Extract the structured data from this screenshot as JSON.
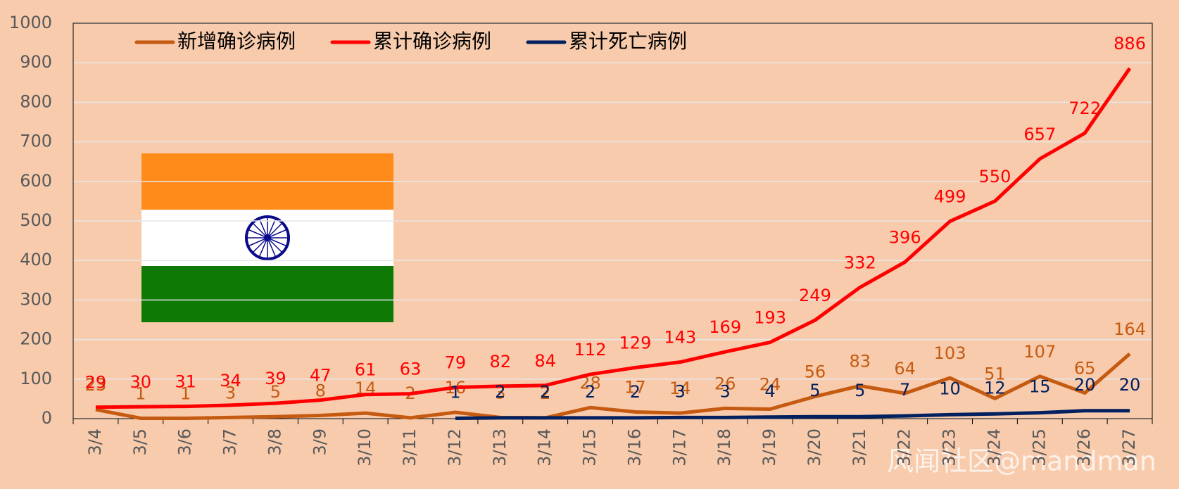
{
  "chart_data": {
    "type": "line",
    "categories": [
      "3/4",
      "3/5",
      "3/6",
      "3/7",
      "3/8",
      "3/9",
      "3/10",
      "3/11",
      "3/12",
      "3/13",
      "3/14",
      "3/15",
      "3/16",
      "3/17",
      "3/18",
      "3/19",
      "3/20",
      "3/21",
      "3/22",
      "3/23",
      "3/24",
      "3/25",
      "3/26",
      "3/27"
    ],
    "series": [
      {
        "name": "新增确诊病例",
        "color": "#c55a11",
        "values": [
          23,
          1,
          1,
          3,
          5,
          8,
          14,
          2,
          16,
          3,
          2,
          28,
          17,
          14,
          26,
          24,
          56,
          83,
          64,
          103,
          51,
          107,
          65,
          164
        ]
      },
      {
        "name": "累计确诊病例",
        "color": "#ff0000",
        "values": [
          29,
          30,
          31,
          34,
          39,
          47,
          61,
          63,
          79,
          82,
          84,
          112,
          129,
          143,
          169,
          193,
          249,
          332,
          396,
          499,
          550,
          657,
          722,
          886
        ]
      },
      {
        "name": "累计死亡病例",
        "color": "#002060",
        "values": [
          null,
          null,
          null,
          null,
          null,
          null,
          null,
          null,
          1,
          2,
          2,
          2,
          2,
          3,
          3,
          4,
          5,
          5,
          7,
          10,
          12,
          15,
          20,
          20
        ]
      }
    ],
    "ylim": [
      0,
      1000
    ],
    "yticks": [
      0,
      100,
      200,
      300,
      400,
      500,
      600,
      700,
      800,
      900,
      1000
    ],
    "grid": true,
    "legend": "top"
  },
  "watermark": "风闻社区@mandman"
}
